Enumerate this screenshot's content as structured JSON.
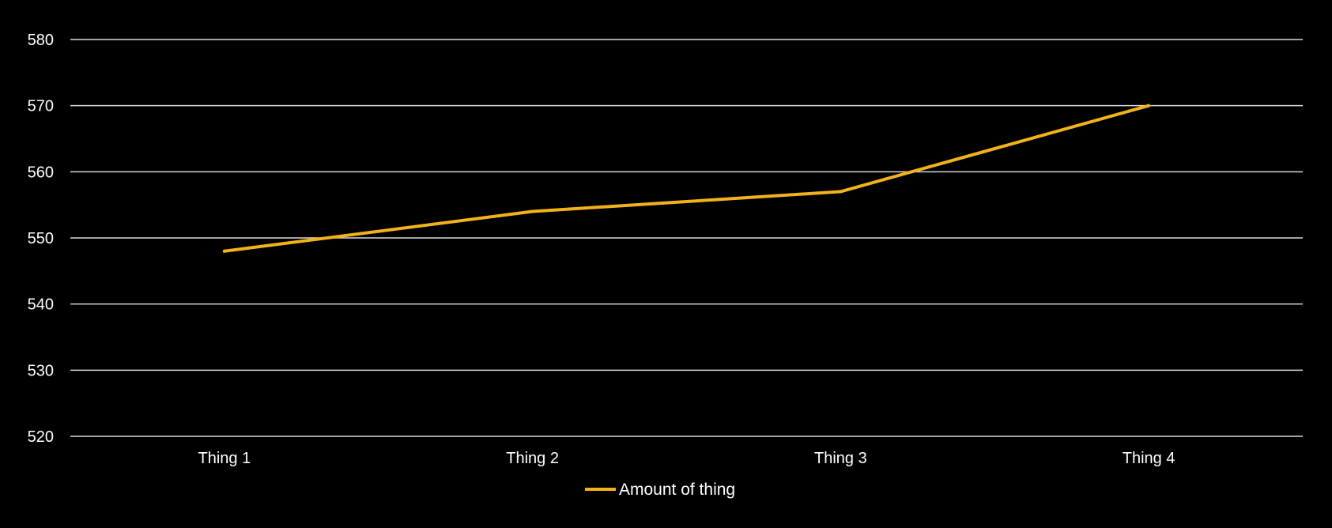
{
  "chart_data": {
    "type": "line",
    "categories": [
      "Thing 1",
      "Thing 2",
      "Thing 3",
      "Thing 4"
    ],
    "series": [
      {
        "name": "Amount of thing",
        "values": [
          548,
          554,
          557,
          570
        ],
        "color": "#f2b21b"
      }
    ],
    "ylim": [
      520,
      580
    ],
    "yticks": [
      "520",
      "530",
      "540",
      "550",
      "560",
      "570",
      "580"
    ],
    "grid": true,
    "legend": "bottom",
    "colors": {
      "background": "#000000",
      "grid": "#d9d9d9",
      "text": "#ffffff"
    }
  }
}
